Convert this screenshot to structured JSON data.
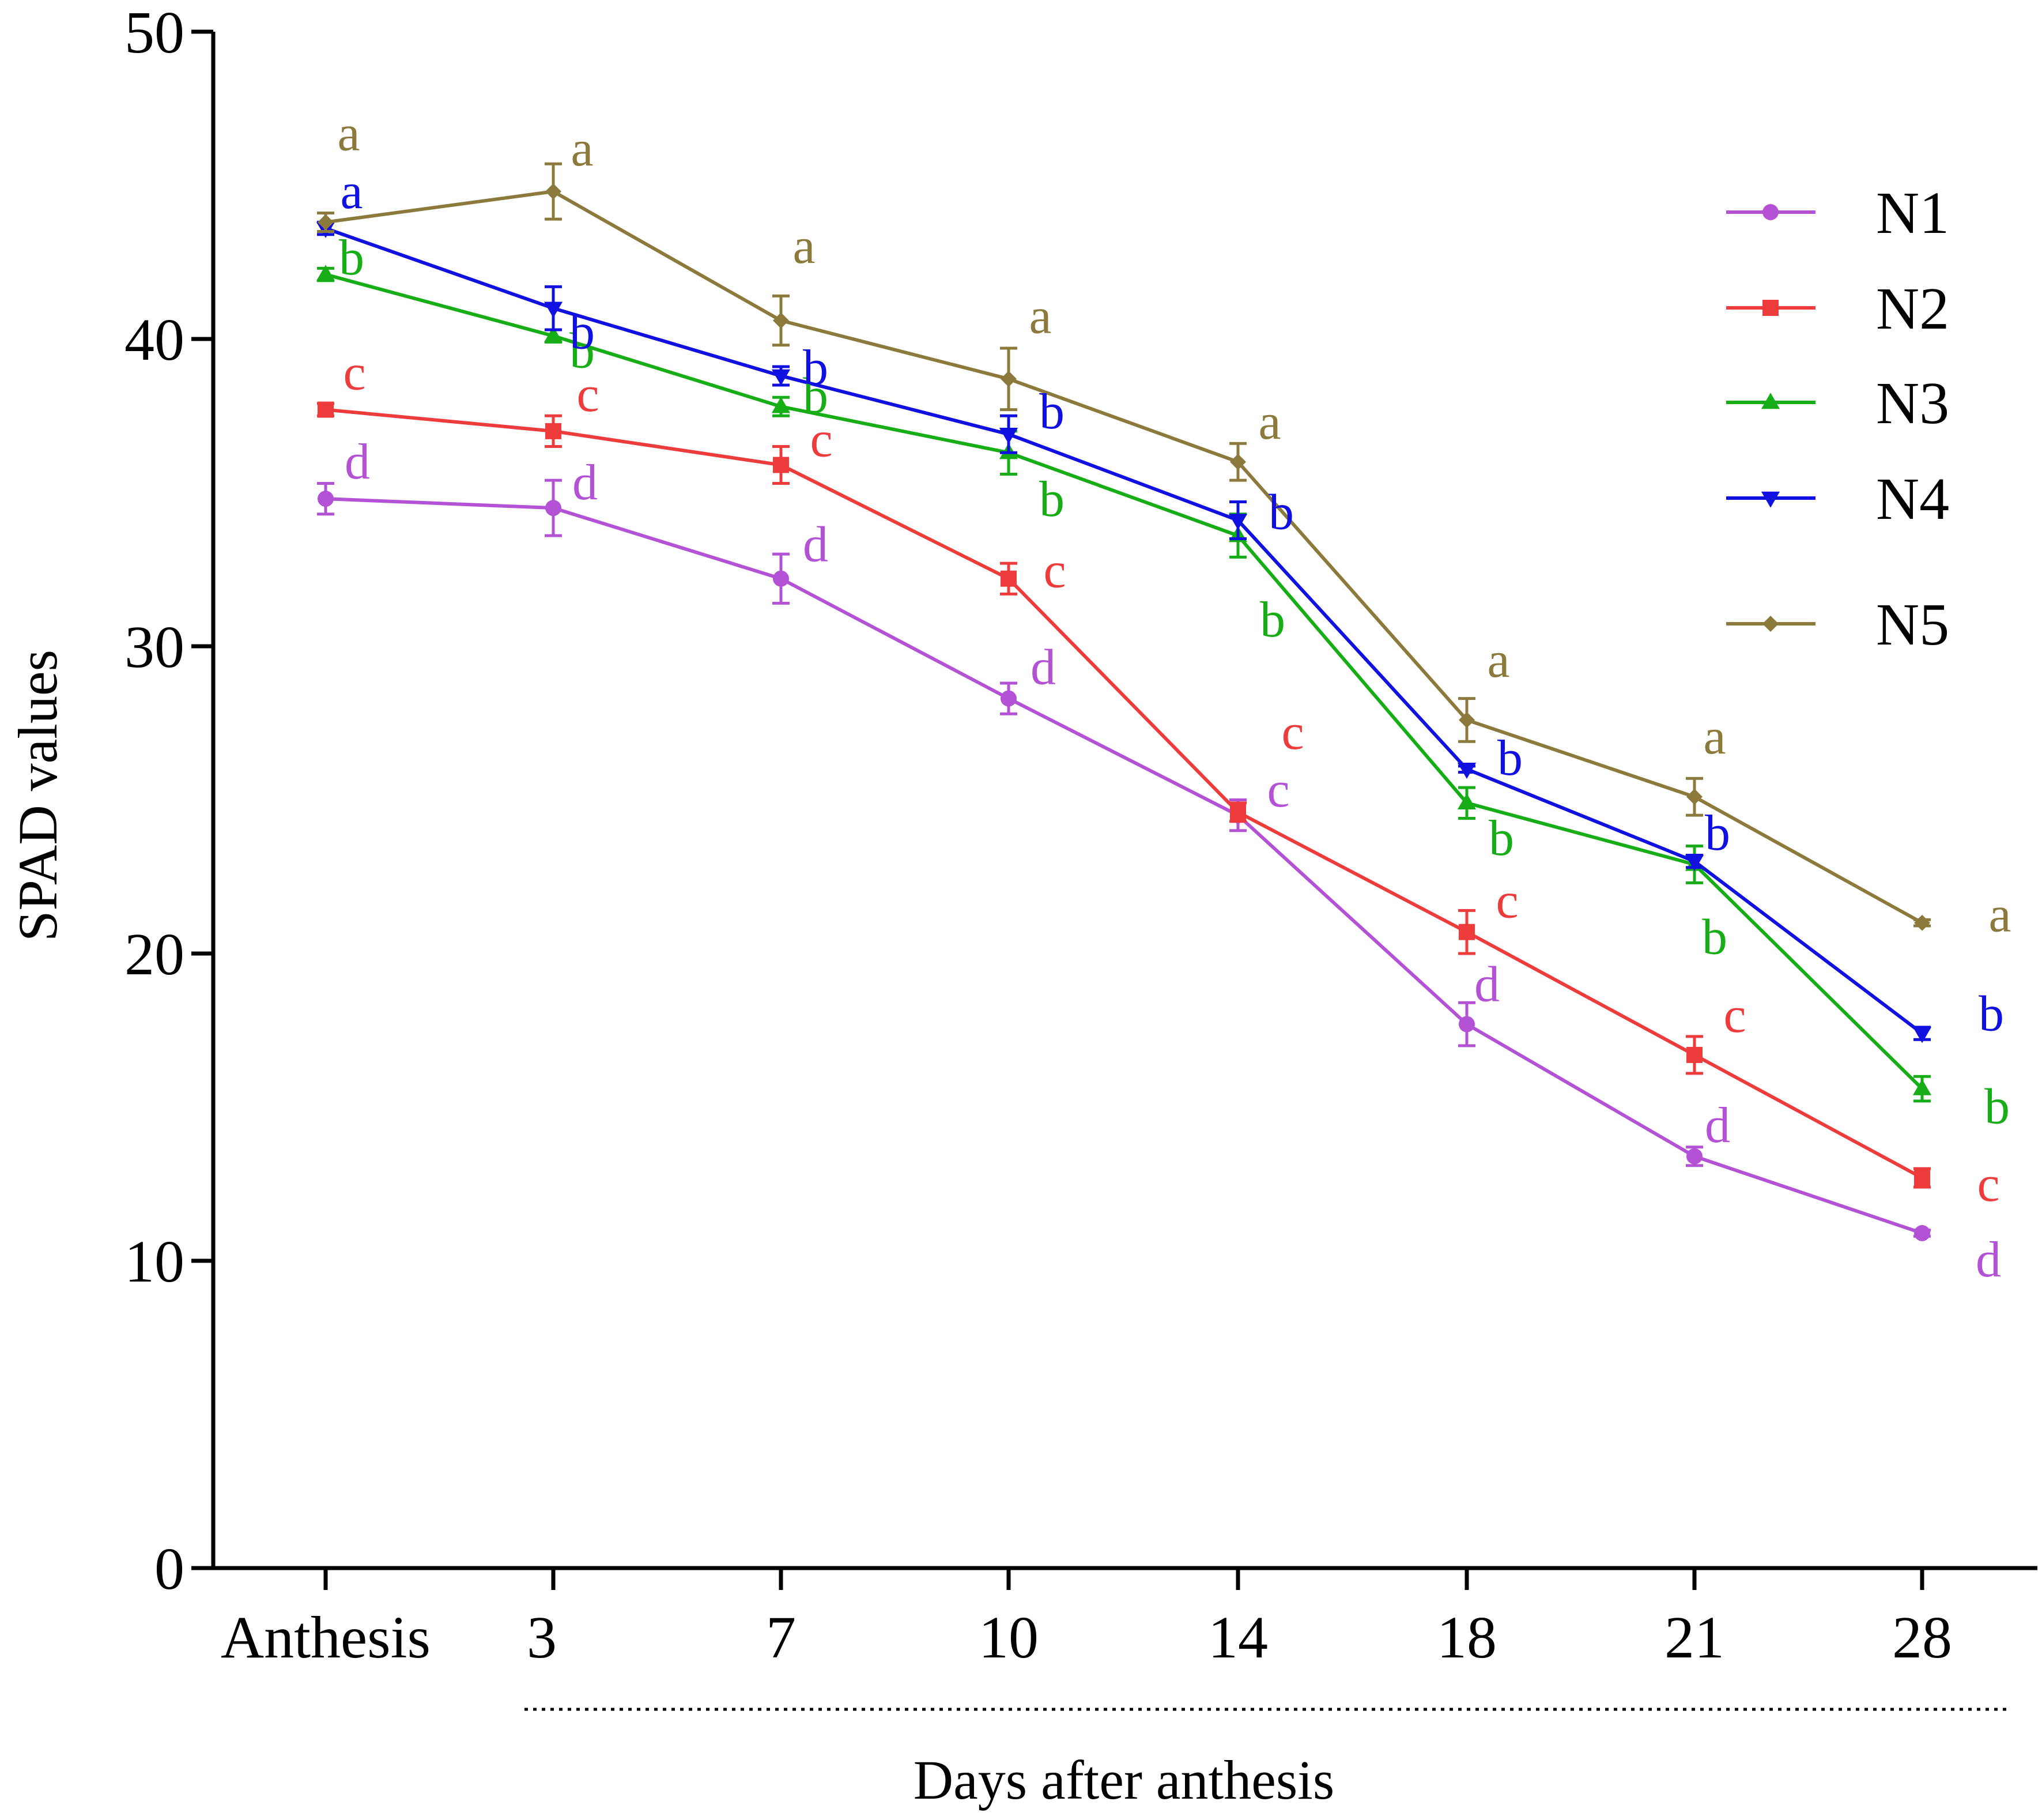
{
  "chart_data": {
    "type": "line",
    "title": "",
    "xlabel": "Days after anthesis",
    "ylabel": "SPAD values",
    "ylim": [
      0,
      50
    ],
    "yticks": [
      0,
      10,
      20,
      30,
      40,
      50
    ],
    "categories": [
      "Anthesis",
      "3",
      "7",
      "10",
      "14",
      "18",
      "21",
      "28"
    ],
    "legend_position": "top-right",
    "grid": false,
    "series": [
      {
        "name": "N1",
        "color": "#b452d6",
        "marker": "circle",
        "values": [
          34.8,
          34.5,
          32.2,
          28.3,
          24.5,
          17.7,
          13.4,
          10.9
        ],
        "errors": [
          0.5,
          0.9,
          0.8,
          0.5,
          0.5,
          0.7,
          0.3,
          0.1
        ],
        "sig": [
          "d",
          "d",
          "d",
          "d",
          "c",
          "d",
          "d",
          "d"
        ]
      },
      {
        "name": "N2",
        "color": "#ee3b3b",
        "marker": "square",
        "values": [
          37.7,
          37.0,
          35.9,
          32.2,
          24.6,
          20.7,
          16.7,
          12.7
        ],
        "errors": [
          0.2,
          0.5,
          0.6,
          0.5,
          0.3,
          0.7,
          0.6,
          0.3
        ],
        "sig": [
          "c",
          "c",
          "c",
          "c",
          "c",
          "c",
          "c",
          "c"
        ]
      },
      {
        "name": "N3",
        "color": "#16ad16",
        "marker": "triangle-up",
        "values": [
          42.1,
          40.1,
          37.8,
          36.3,
          33.6,
          24.9,
          22.9,
          15.6
        ],
        "errors": [
          0.2,
          0.2,
          0.3,
          0.7,
          0.7,
          0.5,
          0.6,
          0.4
        ],
        "sig": [
          "b",
          "b",
          "b",
          "b",
          "b",
          "b",
          "b",
          "b"
        ]
      },
      {
        "name": "N4",
        "color": "#1010e0",
        "marker": "triangle-down",
        "values": [
          43.6,
          41.0,
          38.8,
          36.9,
          34.1,
          26.0,
          23.0,
          17.4
        ],
        "errors": [
          0.2,
          0.7,
          0.3,
          0.6,
          0.6,
          0.1,
          0.2,
          0.2
        ],
        "sig": [
          "a",
          "b",
          "b",
          "b",
          "b",
          "b",
          "b",
          "b"
        ]
      },
      {
        "name": "N5",
        "color": "#8c7a3c",
        "marker": "diamond",
        "values": [
          43.8,
          44.8,
          40.6,
          38.7,
          36.0,
          27.6,
          25.1,
          21.0
        ],
        "errors": [
          0.3,
          0.9,
          0.8,
          1.0,
          0.6,
          0.7,
          0.6,
          0.1
        ],
        "sig": [
          "a",
          "a",
          "a",
          "a",
          "a",
          "a",
          "a",
          "a"
        ]
      }
    ]
  }
}
